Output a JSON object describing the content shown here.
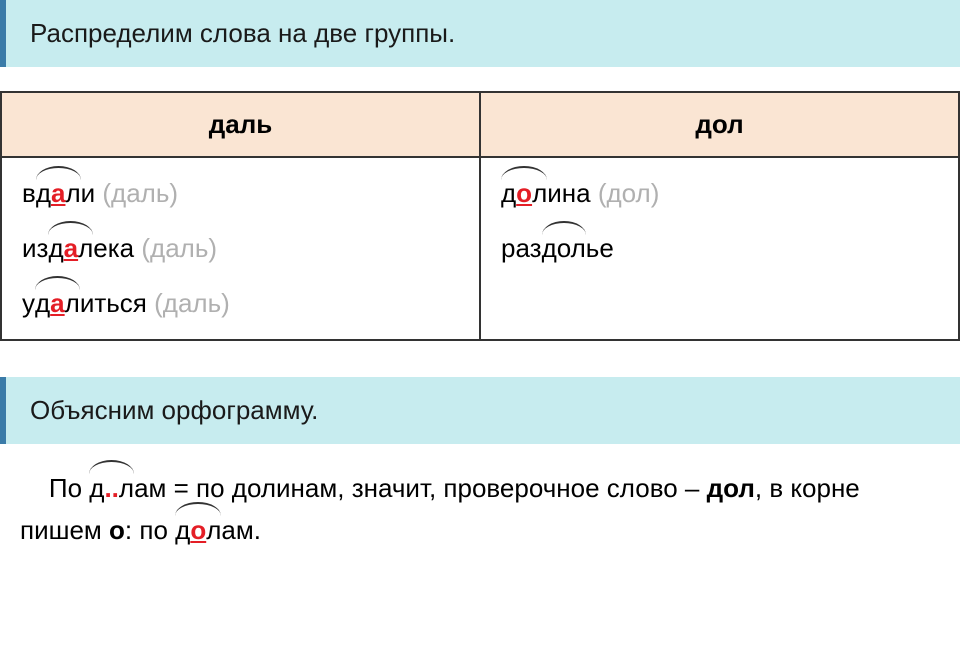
{
  "header1": "Распределим слова на две группы.",
  "header2": "Объясним орфограмму.",
  "table": {
    "col1_header": "даль",
    "col2_header": "дол",
    "col1_rows": [
      {
        "prefix": "в",
        "root": "дал",
        "highlight": "а",
        "suffix": "и",
        "check": "(даль)"
      },
      {
        "prefix": "из",
        "root": "дал",
        "highlight": "а",
        "suffix": "ека",
        "check": "(даль)"
      },
      {
        "prefix": "у",
        "root": "дал",
        "highlight": "а",
        "suffix": "иться",
        "check": "(даль)"
      }
    ],
    "col2_rows": [
      {
        "prefix": "",
        "root": "дол",
        "highlight": "о",
        "suffix": "ина",
        "check": "(дол)"
      },
      {
        "prefix": "раз",
        "root": "дол",
        "highlight": "",
        "suffix": "ье",
        "check": ""
      }
    ]
  },
  "explanation": {
    "part1": "По ",
    "root1_pre": "д",
    "dots": "..",
    "root1_post": "л",
    "part2": "ам = по долинам, значит, проверочное слово – ",
    "bold1": "дол",
    "part3": ", в корне пишем ",
    "bold2": "о",
    "part4": ": по ",
    "root2_pre": "д",
    "root2_hl": "о",
    "root2_post": "л",
    "part5": "ам."
  },
  "colors": {
    "header_bg": "#c7ecef",
    "header_border": "#3a7ba8",
    "th_bg": "#fae5d3",
    "border": "#333333",
    "red": "#e41e26",
    "gray": "#b0b0b0"
  }
}
